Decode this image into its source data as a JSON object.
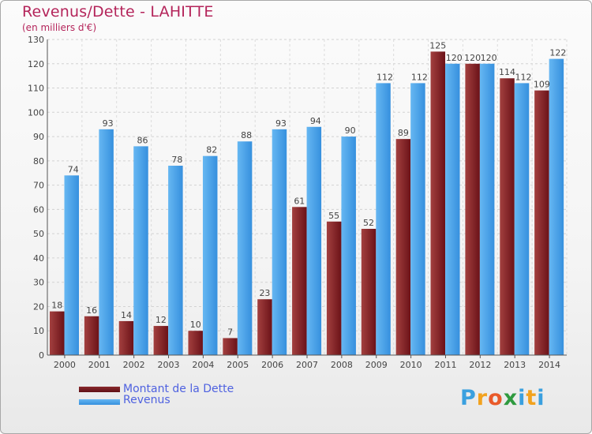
{
  "title": "Revenus/Dette - LAHITTE",
  "subtitle": "(en milliers d'€)",
  "legend": {
    "debt_label": "Montant de la Dette",
    "revenue_label": "Revenus"
  },
  "logo": {
    "letters": [
      "P",
      "r",
      "o",
      "x",
      "i",
      "t",
      "i"
    ],
    "colors": [
      "#3aa0df",
      "#f2a21e",
      "#e95a2a",
      "#2f9a3f",
      "#3aa0df",
      "#f2a21e",
      "#3aa0df"
    ]
  },
  "colors": {
    "debt": "#7a1a1f",
    "debt_light": "#9c3a3d",
    "revenue": "#3f9ae2",
    "revenue_light": "#62b4f0",
    "title": "#b4245a"
  },
  "chart_data": {
    "type": "bar",
    "title": "Revenus/Dette - LAHITTE",
    "subtitle": "(en milliers d'€)",
    "categories": [
      "2000",
      "2001",
      "2002",
      "2003",
      "2004",
      "2005",
      "2006",
      "2007",
      "2008",
      "2009",
      "2010",
      "2011",
      "2012",
      "2013",
      "2014"
    ],
    "series": [
      {
        "name": "Montant de la Dette",
        "values": [
          18,
          16,
          14,
          12,
          10,
          7,
          23,
          61,
          55,
          52,
          89,
          125,
          120,
          114,
          109
        ]
      },
      {
        "name": "Revenus",
        "values": [
          74,
          93,
          86,
          78,
          82,
          88,
          93,
          94,
          90,
          112,
          112,
          120,
          120,
          112,
          122
        ]
      }
    ],
    "ylim": [
      0,
      130
    ],
    "yticks": [
      0,
      10,
      20,
      30,
      40,
      50,
      60,
      70,
      80,
      90,
      100,
      110,
      120,
      130
    ],
    "grid": true,
    "legend_position": "bottom-left"
  }
}
